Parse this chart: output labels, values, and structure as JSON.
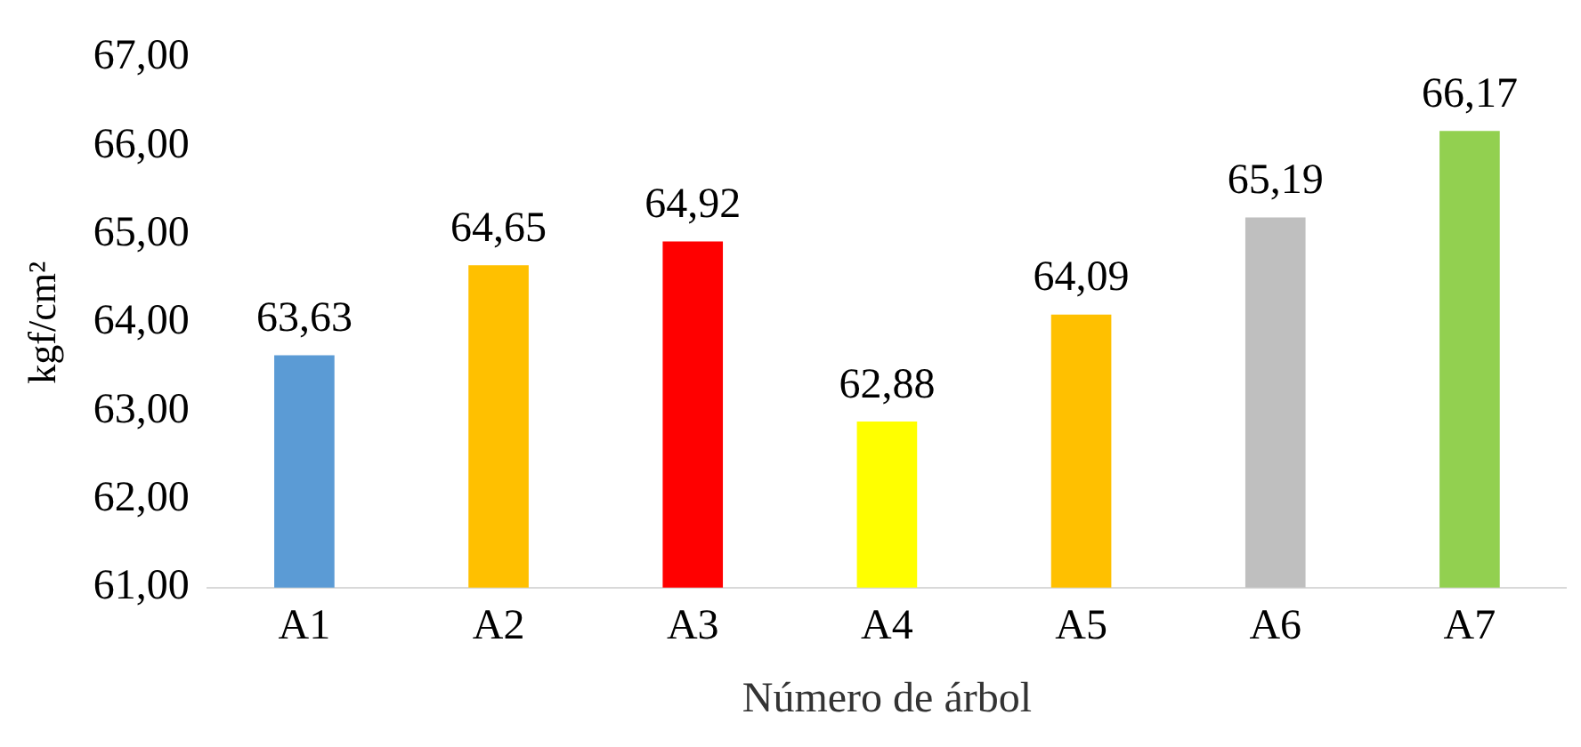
{
  "chart_data": {
    "type": "bar",
    "xlabel": "Número de árbol",
    "ylabel": "kgf/cm²",
    "categories": [
      "A1",
      "A2",
      "A3",
      "A4",
      "A5",
      "A6",
      "A7"
    ],
    "values": [
      63.63,
      64.65,
      64.92,
      62.88,
      64.09,
      65.19,
      66.17
    ],
    "colors": [
      "#5b9bd5",
      "#ffc000",
      "#ff0000",
      "#ffff00",
      "#ffc000",
      "#bfbfbf",
      "#92d050"
    ],
    "value_labels": [
      "63,63",
      "64,65",
      "64,92",
      "62,88",
      "64,09",
      "65,19",
      "66,17"
    ],
    "ylim": [
      61,
      67
    ],
    "yticks": [
      {
        "value": 61,
        "label": "61,00"
      },
      {
        "value": 62,
        "label": "62,00"
      },
      {
        "value": 63,
        "label": "63,00"
      },
      {
        "value": 64,
        "label": "64,00"
      },
      {
        "value": 65,
        "label": "65,00"
      },
      {
        "value": 66,
        "label": "66,00"
      },
      {
        "value": 67,
        "label": "67,00"
      }
    ],
    "grid": false,
    "legend": false
  }
}
